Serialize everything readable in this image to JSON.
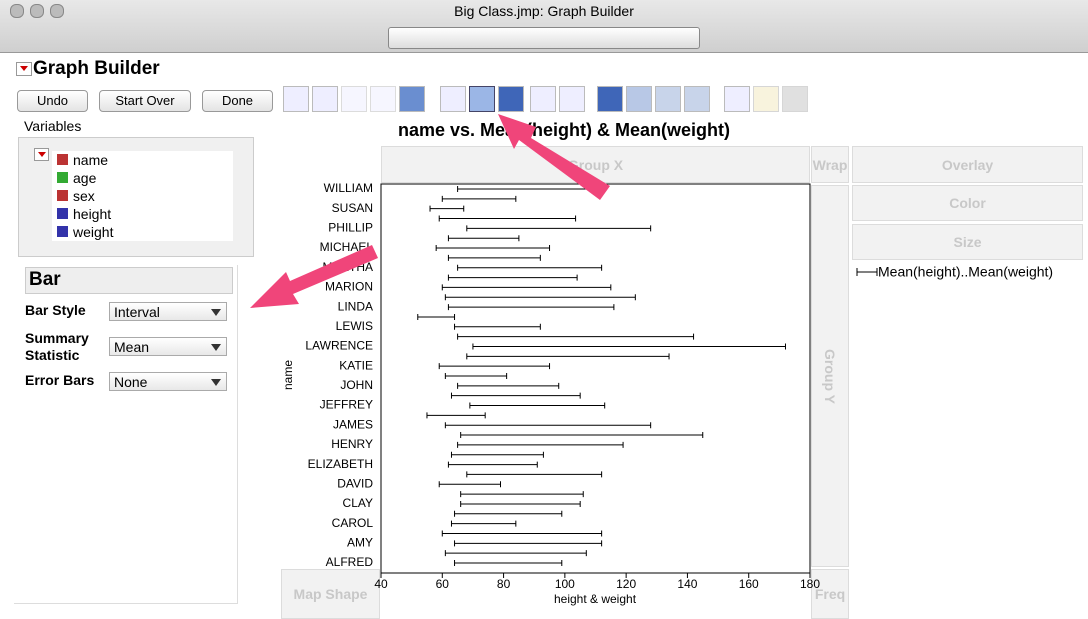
{
  "window_title": "Big Class.jmp: Graph Builder",
  "header": {
    "title": "Graph Builder"
  },
  "buttons": [
    "Undo",
    "Start Over",
    "Done"
  ],
  "variables": {
    "label": "Variables",
    "items": [
      "name",
      "age",
      "sex",
      "height",
      "weight"
    ]
  },
  "bar_panel": {
    "title": "Bar",
    "settings": [
      {
        "label": "Bar Style",
        "value": "Interval"
      },
      {
        "label": "Summary Statistic",
        "value": "Mean"
      },
      {
        "label": "Error Bars",
        "value": "None"
      }
    ]
  },
  "drop_zones": {
    "group_x": "Group X",
    "wrap": "Wrap",
    "overlay": "Overlay",
    "color": "Color",
    "size": "Size",
    "group_y": "Group Y",
    "map_shape": "Map Shape",
    "freq": "Freq"
  },
  "chart_data": {
    "type": "interval",
    "title": "name vs. Mean(height) & Mean(weight)",
    "x_label": "height & weight",
    "y_label": "name",
    "legend": "Mean(height)..Mean(weight)",
    "color": "#000000",
    "categories": [
      "ALFRED",
      null,
      "AMY",
      null,
      "CAROL",
      null,
      "CLAY",
      null,
      "DAVID",
      null,
      "ELIZABETH",
      null,
      "HENRY",
      null,
      "JAMES",
      null,
      "JEFFREY",
      null,
      "JOHN",
      null,
      "KATIE",
      null,
      "LAWRENCE",
      null,
      "LEWIS",
      null,
      "LINDA",
      null,
      "MARION",
      null,
      "MARTHA",
      null,
      "MICHAEL",
      null,
      "PHILLIP",
      null,
      "SUSAN",
      null,
      "WILLIAM"
    ],
    "low": [
      64,
      61,
      64,
      60,
      63,
      64,
      66,
      66,
      59,
      68,
      62,
      63,
      65,
      66,
      61,
      55,
      69,
      63,
      65,
      61,
      59,
      68,
      70,
      65,
      64,
      52,
      62,
      61,
      60,
      62,
      65,
      62,
      58,
      62,
      68,
      59,
      56,
      60,
      65
    ],
    "high": [
      99,
      107,
      112,
      112,
      84,
      99,
      105,
      106,
      79,
      112,
      91,
      93,
      119,
      145,
      128,
      74,
      113,
      105,
      98,
      81,
      95,
      134,
      172,
      142,
      92,
      64,
      116,
      123,
      115,
      104,
      112,
      92,
      95,
      85,
      128,
      103.5,
      67,
      84,
      112
    ],
    "xlim": [
      40,
      180
    ],
    "xticks": [
      40,
      60,
      80,
      100,
      120,
      140,
      160,
      180
    ]
  }
}
